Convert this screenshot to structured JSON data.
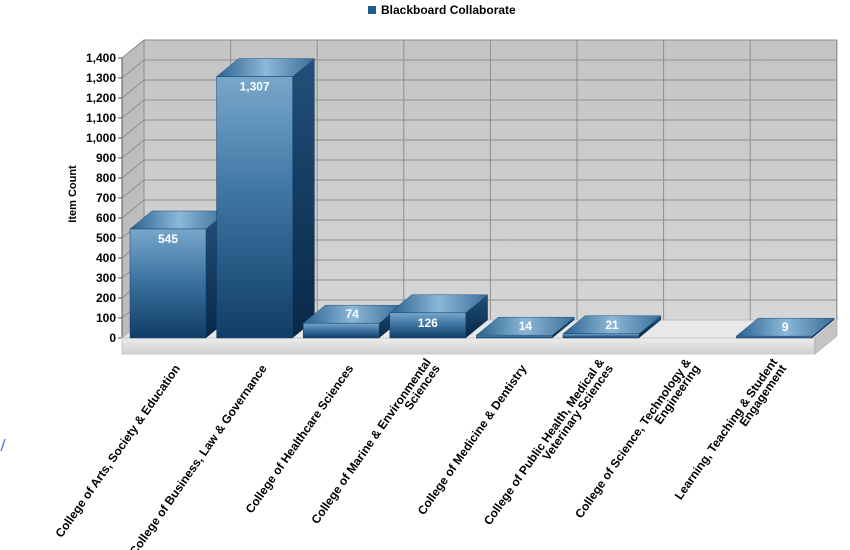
{
  "legend": {
    "label": "Blackboard Collaborate",
    "color": "#1e5a8c"
  },
  "chart_data": {
    "type": "bar",
    "title": "",
    "xlabel": "",
    "ylabel": "Item Count",
    "ylim": [
      0,
      1400
    ],
    "ytick_step": 100,
    "grid": true,
    "legend_position": "top-center",
    "categories": [
      [
        "College of Arts, Society & Education"
      ],
      [
        "College of Business, Law & Governance"
      ],
      [
        "College of Healthcare Sciences"
      ],
      [
        "College of Marine & Environmental",
        "Sciences"
      ],
      [
        "College of Medicine & Dentistry"
      ],
      [
        "College of Public Health, Medical &",
        "Veterinary Sciences"
      ],
      [
        "College of Science, Technology &",
        "Engineering"
      ],
      [
        "Learning, Teaching & Student",
        "Engagement"
      ]
    ],
    "series": [
      {
        "name": "Blackboard Collaborate",
        "values": [
          545,
          1307,
          74,
          126,
          14,
          21,
          0,
          9
        ],
        "labels": [
          "545",
          "1,307",
          "74",
          "126",
          "14",
          "21",
          "",
          "9"
        ]
      }
    ]
  }
}
